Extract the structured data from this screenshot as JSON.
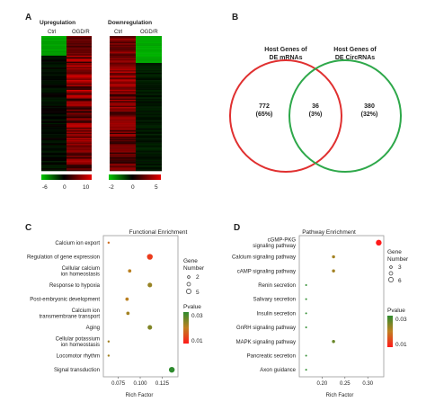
{
  "panel_letters": {
    "a": "A",
    "b": "B",
    "c": "C",
    "d": "D"
  },
  "heatmap": {
    "up_title": "Upregulation",
    "down_title": "Downregulation",
    "col_ctrl": "Ctrl",
    "col_ogd": "OGD/R",
    "up_scale": [
      "-6",
      "0",
      "10"
    ],
    "down_scale": [
      "-2",
      "0",
      "5"
    ],
    "colors": {
      "low": "#00c800",
      "mid": "#000000",
      "high": "#e60000"
    }
  },
  "venn": {
    "left_title_1": "Host Genes of",
    "left_title_2": "DE mRNAs",
    "right_title_1": "Host Genes of",
    "right_title_2": "DE CircRNAs",
    "left_only": "772",
    "left_only_pct": "(65%)",
    "overlap": "36",
    "overlap_pct": "(3%)",
    "right_only": "380",
    "right_only_pct": "(32%)",
    "colors": {
      "left": "#e03030",
      "right": "#2ea84a"
    }
  },
  "chart_data": [
    {
      "type": "scatter",
      "panel": "C",
      "title": "Functional Enrichment",
      "xlabel": "Rich Factor",
      "xlim": [
        0.058,
        0.143
      ],
      "xticks": [
        "0.075",
        "0.100",
        "0.125"
      ],
      "xtick_values": [
        0.075,
        0.1,
        0.125
      ],
      "categories": [
        "Calcium ion export",
        "Regulation of gene expression",
        "Cellular calcium ion homeostasis",
        "Response to hypoxia",
        "Post-embryonic development",
        "Calcium ion transmembrane transport",
        "Aging",
        "Cellular potassium ion homeostasis",
        "Locomotor rhythm",
        "Signal transduction"
      ],
      "category_lines": [
        [
          "Calcium ion export"
        ],
        [
          "Regulation of gene expression"
        ],
        [
          "Cellular calcium",
          "ion homeostasis"
        ],
        [
          "Response to hypoxia"
        ],
        [
          "Post-embryonic development"
        ],
        [
          "Calcium ion",
          "transmembrane transport"
        ],
        [
          "Aging"
        ],
        [
          "Cellular potassium",
          "ion homeostasis"
        ],
        [
          "Locomotor rhythm"
        ],
        [
          "Signal transduction"
        ]
      ],
      "points": [
        {
          "category": "Calcium ion export",
          "x": 0.064,
          "count": 2,
          "pvalue": 0.015
        },
        {
          "category": "Regulation of gene expression",
          "x": 0.111,
          "count": 5,
          "pvalue": 0.009
        },
        {
          "category": "Cellular calcium ion homeostasis",
          "x": 0.088,
          "count": 3,
          "pvalue": 0.018
        },
        {
          "category": "Response to hypoxia",
          "x": 0.111,
          "count": 4,
          "pvalue": 0.021
        },
        {
          "category": "Post-embryonic development",
          "x": 0.085,
          "count": 3,
          "pvalue": 0.018
        },
        {
          "category": "Calcium ion transmembrane transport",
          "x": 0.086,
          "count": 3,
          "pvalue": 0.02
        },
        {
          "category": "Aging",
          "x": 0.111,
          "count": 4,
          "pvalue": 0.023
        },
        {
          "category": "Cellular potassium ion homeostasis",
          "x": 0.064,
          "count": 2,
          "pvalue": 0.02
        },
        {
          "category": "Locomotor rhythm",
          "x": 0.064,
          "count": 2,
          "pvalue": 0.02
        },
        {
          "category": "Signal transduction",
          "x": 0.136,
          "count": 5,
          "pvalue": 0.03
        }
      ],
      "size_legend": {
        "title_1": "Gene",
        "title_2": "Number",
        "labels": [
          "2",
          "5"
        ]
      },
      "color_legend": {
        "title": "Pvalue",
        "labels": [
          "0.03",
          "0.01"
        ]
      },
      "colors": {
        "low_p": "#ff1a1a",
        "high_p": "#2e8b2e"
      }
    },
    {
      "type": "scatter",
      "panel": "D",
      "title": "Pathway Enrichment",
      "xlabel": "Rich Factor",
      "xlim": [
        0.15,
        0.335
      ],
      "xticks": [
        "0.20",
        "0.25",
        "0.30"
      ],
      "xtick_values": [
        0.2,
        0.25,
        0.3
      ],
      "categories": [
        "cGMP-PKG signaling pathway",
        "Calcium signaling pathway",
        "cAMP signaling pathway",
        "Renin secretion",
        "Salivary secretion",
        "Insulin secretion",
        "GnRH signaling pathway",
        "MAPK signaling pathway",
        "Pancreatic secretion",
        "Axon guidance"
      ],
      "category_lines": [
        [
          "cGMP-PKG",
          "signaling pathway"
        ],
        [
          "Calcium signaling pathway"
        ],
        [
          "cAMP signaling pathway"
        ],
        [
          "Renin secretion"
        ],
        [
          "Salivary secretion"
        ],
        [
          "Insulin secretion"
        ],
        [
          "GnRH signaling pathway"
        ],
        [
          "MAPK signaling pathway"
        ],
        [
          "Pancreatic secretion"
        ],
        [
          "Axon guidance"
        ]
      ],
      "points": [
        {
          "category": "cGMP-PKG signaling pathway",
          "x": 0.324,
          "count": 6,
          "pvalue": 0.005
        },
        {
          "category": "Calcium signaling pathway",
          "x": 0.225,
          "count": 4,
          "pvalue": 0.02
        },
        {
          "category": "cAMP signaling pathway",
          "x": 0.225,
          "count": 4,
          "pvalue": 0.02
        },
        {
          "category": "Renin secretion",
          "x": 0.165,
          "count": 3,
          "pvalue": 0.03
        },
        {
          "category": "Salivary secretion",
          "x": 0.165,
          "count": 3,
          "pvalue": 0.03
        },
        {
          "category": "Insulin secretion",
          "x": 0.165,
          "count": 3,
          "pvalue": 0.03
        },
        {
          "category": "GnRH signaling pathway",
          "x": 0.165,
          "count": 3,
          "pvalue": 0.03
        },
        {
          "category": "MAPK signaling pathway",
          "x": 0.225,
          "count": 4,
          "pvalue": 0.025
        },
        {
          "category": "Pancreatic secretion",
          "x": 0.165,
          "count": 3,
          "pvalue": 0.03
        },
        {
          "category": "Axon guidance",
          "x": 0.165,
          "count": 3,
          "pvalue": 0.03
        }
      ],
      "size_legend": {
        "title_1": "Gene",
        "title_2": "Number",
        "labels": [
          "3",
          "6"
        ]
      },
      "color_legend": {
        "title": "Pvalue",
        "labels": [
          "0.03",
          "0.01"
        ]
      },
      "colors": {
        "low_p": "#ff1a1a",
        "high_p": "#2e8b2e"
      }
    }
  ]
}
